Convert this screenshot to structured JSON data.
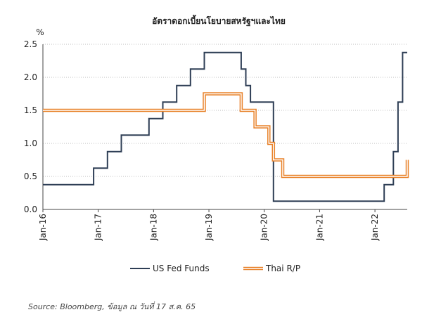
{
  "chart_data": {
    "type": "line",
    "title": "อัตราดอกเบี้ยนโยบายสหรัฐฯและไทย",
    "ylabel": "%",
    "xlabel": "",
    "ylim": [
      0,
      2.5
    ],
    "yticks": [
      "0.0",
      "0.5",
      "1.0",
      "1.5",
      "2.0",
      "2.5"
    ],
    "xlim": [
      "2016-01",
      "2022-08"
    ],
    "xticks": [
      "Jan-16",
      "Jan-17",
      "Jan-18",
      "Jan-19",
      "Jan-20",
      "Jan-21",
      "Jan-22"
    ],
    "grid": "horizontal",
    "legend_position": "bottom",
    "series": [
      {
        "name": "US Fed Funds",
        "color": "#2e3e55",
        "style": "step",
        "points": [
          [
            "2016-01",
            0.375
          ],
          [
            "2016-12",
            0.375
          ],
          [
            "2016-12",
            0.625
          ],
          [
            "2017-03",
            0.625
          ],
          [
            "2017-03",
            0.875
          ],
          [
            "2017-06",
            0.875
          ],
          [
            "2017-06",
            1.125
          ],
          [
            "2017-12",
            1.125
          ],
          [
            "2017-12",
            1.375
          ],
          [
            "2018-03",
            1.375
          ],
          [
            "2018-03",
            1.625
          ],
          [
            "2018-06",
            1.625
          ],
          [
            "2018-06",
            1.875
          ],
          [
            "2018-09",
            1.875
          ],
          [
            "2018-09",
            2.125
          ],
          [
            "2018-12",
            2.125
          ],
          [
            "2018-12",
            2.375
          ],
          [
            "2019-08",
            2.375
          ],
          [
            "2019-08",
            2.125
          ],
          [
            "2019-09",
            2.125
          ],
          [
            "2019-09",
            1.875
          ],
          [
            "2019-10",
            1.875
          ],
          [
            "2019-10",
            1.625
          ],
          [
            "2020-03",
            1.625
          ],
          [
            "2020-03",
            1.125
          ],
          [
            "2020-03",
            0.125
          ],
          [
            "2022-03",
            0.125
          ],
          [
            "2022-03",
            0.375
          ],
          [
            "2022-05",
            0.375
          ],
          [
            "2022-05",
            0.875
          ],
          [
            "2022-06",
            0.875
          ],
          [
            "2022-06",
            1.625
          ],
          [
            "2022-07",
            1.625
          ],
          [
            "2022-07",
            2.375
          ],
          [
            "2022-08",
            2.375
          ]
        ]
      },
      {
        "name": "Thai R/P",
        "color": "#e8822a",
        "style": "step",
        "points": [
          [
            "2016-01",
            1.5
          ],
          [
            "2018-12",
            1.5
          ],
          [
            "2018-12",
            1.75
          ],
          [
            "2019-08",
            1.75
          ],
          [
            "2019-08",
            1.5
          ],
          [
            "2019-11",
            1.5
          ],
          [
            "2019-11",
            1.25
          ],
          [
            "2020-02",
            1.25
          ],
          [
            "2020-02",
            1.0
          ],
          [
            "2020-03",
            1.0
          ],
          [
            "2020-03",
            0.75
          ],
          [
            "2020-05",
            0.75
          ],
          [
            "2020-05",
            0.5
          ],
          [
            "2022-08",
            0.5
          ],
          [
            "2022-08",
            0.75
          ]
        ]
      }
    ]
  },
  "footer": {
    "source": "Source: Bloomberg, ข้อมูล ณ วันที่ 17 ส.ค. 65"
  }
}
